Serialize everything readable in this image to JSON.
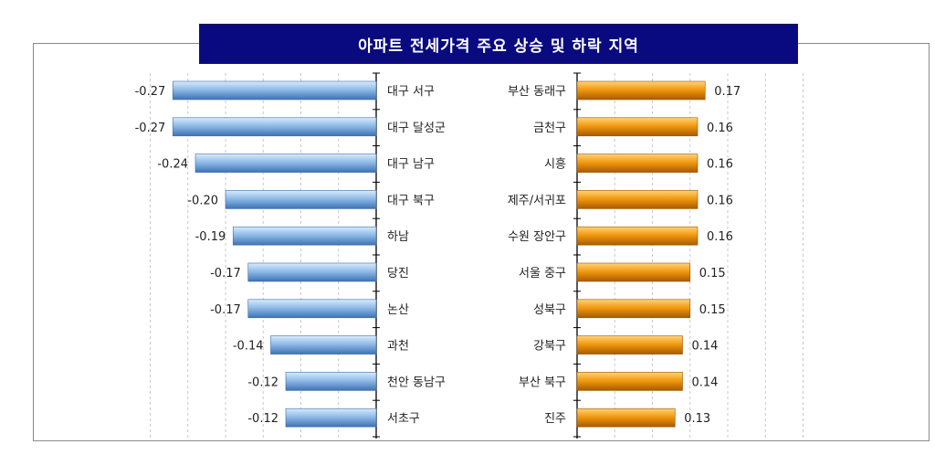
{
  "chart_data": [
    {
      "type": "bar",
      "title": "아파트 전세가격 주요 상승 및 하락 지역",
      "series": [
        {
          "name": "",
          "values": [
            -0.27,
            -0.27,
            -0.24,
            -0.2,
            -0.19,
            -0.17,
            -0.17,
            -0.14,
            -0.12,
            -0.12
          ]
        }
      ],
      "categories": [
        "대구 서구",
        "대구 달성군",
        "대구 남구",
        "대구 북구",
        "하남",
        "당진",
        "논산",
        "과천",
        "천안 동남구",
        "서초구"
      ],
      "value_labels": [
        "-0.27",
        "-0.27",
        "-0.24",
        "-0.20",
        "-0.19",
        "-0.17",
        "-0.17",
        "-0.14",
        "-0.12",
        "-0.12"
      ],
      "xlim": [
        -0.3,
        0
      ],
      "color": "#6e9fd8",
      "grid": true
    },
    {
      "type": "bar",
      "series": [
        {
          "name": "",
          "values": [
            0.17,
            0.16,
            0.16,
            0.16,
            0.16,
            0.15,
            0.15,
            0.14,
            0.14,
            0.13
          ]
        }
      ],
      "categories": [
        "부산 동래구",
        "금천구",
        "시흥",
        "제주/서귀포",
        "수원 장안구",
        "서울 중구",
        "성북구",
        "강북구",
        "부산 북구",
        "진주"
      ],
      "value_labels": [
        "0.17",
        "0.16",
        "0.16",
        "0.16",
        "0.16",
        "0.15",
        "0.15",
        "0.14",
        "0.14",
        "0.13"
      ],
      "xlim": [
        0,
        0.3
      ],
      "color": "#f09000",
      "grid": true
    }
  ]
}
